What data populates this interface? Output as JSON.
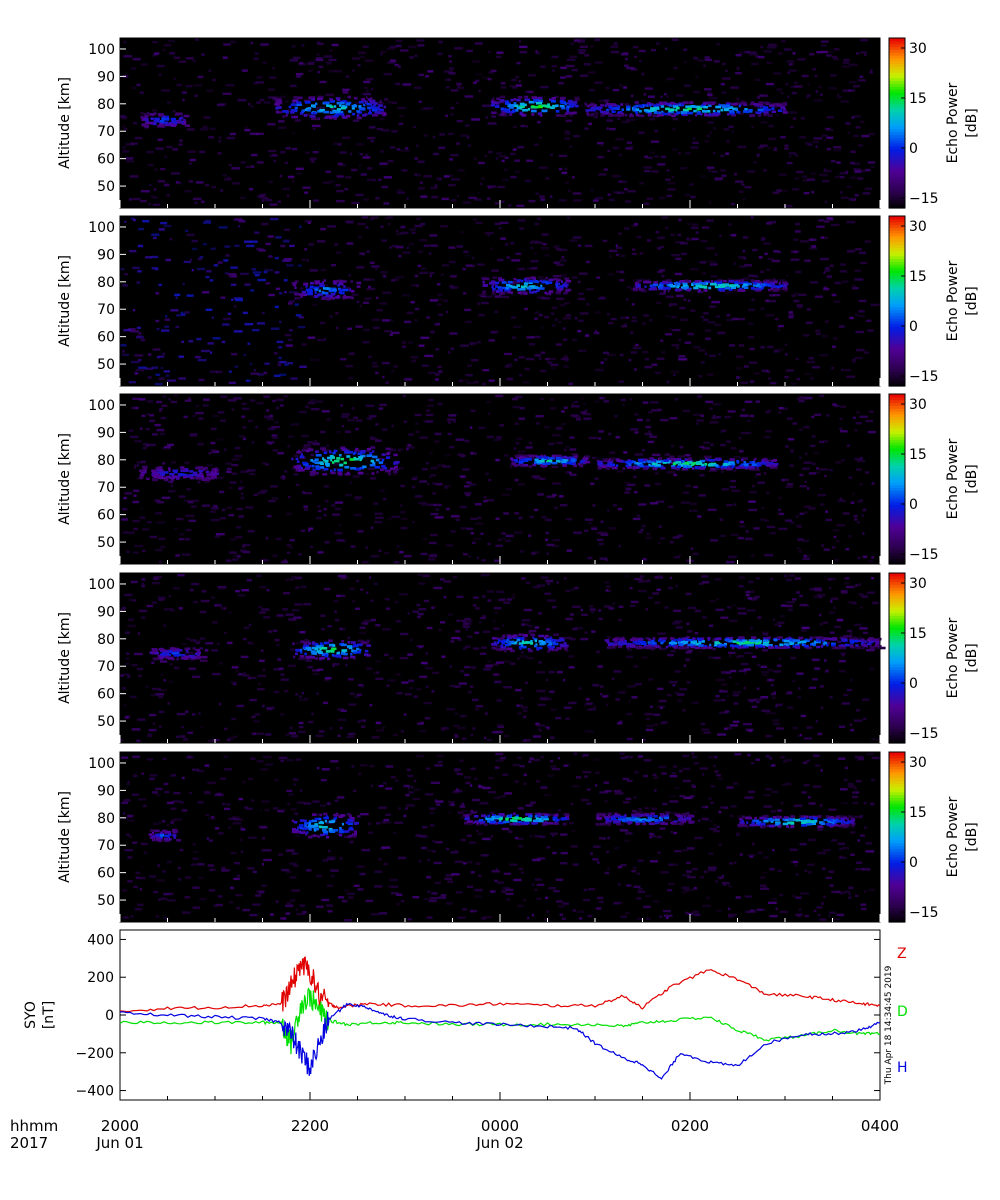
{
  "chart_data": [
    {
      "type": "heatmap",
      "panel": 1,
      "ylabel": "Altitude [km]",
      "yticks": [
        100,
        90,
        80,
        70,
        60,
        50
      ],
      "ylim": [
        42,
        104
      ],
      "colorbar": {
        "label": "Echo Power",
        "unit": "[dB]",
        "ticks": [
          30,
          15,
          0,
          -15
        ],
        "range": [
          -18,
          33
        ]
      },
      "echo_layers": [
        {
          "x": [
            20.2,
            20.7
          ],
          "alt": [
            72,
            77
          ],
          "peak_db": 5
        },
        {
          "x": [
            21.6,
            22.8
          ],
          "alt": [
            75,
            83
          ],
          "peak_db": 15
        },
        {
          "x": [
            23.9,
            24.8
          ],
          "alt": [
            76,
            83
          ],
          "peak_db": 20
        },
        {
          "x": [
            24.9,
            27.0
          ],
          "alt": [
            76,
            81
          ],
          "peak_db": 18
        }
      ]
    },
    {
      "type": "heatmap",
      "panel": 2,
      "ylabel": "Altitude [km]",
      "yticks": [
        100,
        90,
        80,
        70,
        60,
        50
      ],
      "ylim": [
        42,
        104
      ],
      "colorbar": {
        "label": "Echo Power",
        "unit": "[dB]",
        "ticks": [
          30,
          15,
          0,
          -15
        ],
        "range": [
          -18,
          33
        ]
      },
      "echo_layers": [
        {
          "x": [
            21.8,
            22.5
          ],
          "alt": [
            74,
            81
          ],
          "peak_db": 8
        },
        {
          "x": [
            23.8,
            24.7
          ],
          "alt": [
            76,
            82
          ],
          "peak_db": 15
        },
        {
          "x": [
            25.4,
            27.0
          ],
          "alt": [
            77,
            81
          ],
          "peak_db": 18
        }
      ]
    },
    {
      "type": "heatmap",
      "panel": 3,
      "ylabel": "Altitude [km]",
      "yticks": [
        100,
        90,
        80,
        70,
        60,
        50
      ],
      "ylim": [
        42,
        104
      ],
      "colorbar": {
        "label": "Echo Power",
        "unit": "[dB]",
        "ticks": [
          30,
          15,
          0,
          -15
        ],
        "range": [
          -18,
          33
        ]
      },
      "echo_layers": [
        {
          "x": [
            20.2,
            21.0
          ],
          "alt": [
            73,
            78
          ],
          "peak_db": 2
        },
        {
          "x": [
            21.8,
            22.9
          ],
          "alt": [
            75,
            85
          ],
          "peak_db": 20
        },
        {
          "x": [
            24.1,
            24.9
          ],
          "alt": [
            78,
            82
          ],
          "peak_db": 15
        },
        {
          "x": [
            25.0,
            26.9
          ],
          "alt": [
            77,
            81
          ],
          "peak_db": 18
        }
      ]
    },
    {
      "type": "heatmap",
      "panel": 4,
      "ylabel": "Altitude [km]",
      "yticks": [
        100,
        90,
        80,
        70,
        60,
        50
      ],
      "ylim": [
        42,
        104
      ],
      "colorbar": {
        "label": "Echo Power",
        "unit": "[dB]",
        "ticks": [
          30,
          15,
          0,
          -15
        ],
        "range": [
          -18,
          33
        ]
      },
      "echo_layers": [
        {
          "x": [
            20.3,
            20.9
          ],
          "alt": [
            73,
            77
          ],
          "peak_db": 5
        },
        {
          "x": [
            21.8,
            22.6
          ],
          "alt": [
            73,
            80
          ],
          "peak_db": 20
        },
        {
          "x": [
            23.9,
            24.7
          ],
          "alt": [
            76,
            82
          ],
          "peak_db": 15
        },
        {
          "x": [
            25.1,
            28.0
          ],
          "alt": [
            77,
            81
          ],
          "peak_db": 17
        }
      ]
    },
    {
      "type": "heatmap",
      "panel": 5,
      "ylabel": "Altitude [km]",
      "yticks": [
        100,
        90,
        80,
        70,
        60,
        50
      ],
      "ylim": [
        42,
        104
      ],
      "colorbar": {
        "label": "Echo Power",
        "unit": "[dB]",
        "ticks": [
          30,
          15,
          0,
          -15
        ],
        "range": [
          -18,
          33
        ]
      },
      "echo_layers": [
        {
          "x": [
            20.3,
            20.6
          ],
          "alt": [
            72,
            76
          ],
          "peak_db": 5
        },
        {
          "x": [
            21.8,
            22.5
          ],
          "alt": [
            73,
            82
          ],
          "peak_db": 15
        },
        {
          "x": [
            23.6,
            24.7
          ],
          "alt": [
            78,
            82
          ],
          "peak_db": 20
        },
        {
          "x": [
            25.0,
            26.0
          ],
          "alt": [
            78,
            82
          ],
          "peak_db": 10
        },
        {
          "x": [
            26.5,
            27.7
          ],
          "alt": [
            77,
            81
          ],
          "peak_db": 18
        }
      ]
    },
    {
      "type": "line",
      "panel": 6,
      "ylabel_lines": [
        "SYO",
        "[nT]"
      ],
      "yticks": [
        400,
        200,
        0,
        -200,
        -400
      ],
      "ylim": [
        -450,
        450
      ],
      "timestamp": "Thu Apr 18 14:34:45 2019",
      "series": [
        {
          "name": "Z",
          "color": "#e00000",
          "x": [
            20.0,
            20.5,
            21.0,
            21.5,
            21.7,
            21.8,
            21.9,
            22.0,
            22.1,
            22.2,
            22.3,
            22.6,
            23.0,
            23.5,
            24.0,
            24.5,
            25.0,
            25.3,
            25.5,
            25.8,
            26.2,
            26.5,
            26.8,
            27.2,
            27.5,
            27.8,
            28.0
          ],
          "y": [
            20,
            35,
            40,
            50,
            60,
            150,
            270,
            230,
            100,
            60,
            40,
            60,
            50,
            50,
            60,
            50,
            50,
            100,
            40,
            150,
            240,
            190,
            110,
            100,
            80,
            60,
            50
          ]
        },
        {
          "name": "D",
          "color": "#00e000",
          "x": [
            20.0,
            20.5,
            21.0,
            21.5,
            21.7,
            21.8,
            21.9,
            22.0,
            22.1,
            22.2,
            22.4,
            22.7,
            23.0,
            23.5,
            24.0,
            24.5,
            25.0,
            25.3,
            25.5,
            25.8,
            26.2,
            26.5,
            26.8,
            27.2,
            27.5,
            27.8,
            28.0
          ],
          "y": [
            -40,
            -40,
            -40,
            -40,
            -40,
            -150,
            50,
            100,
            20,
            -30,
            -50,
            -40,
            -40,
            -50,
            -50,
            -50,
            -50,
            -60,
            -40,
            -30,
            -10,
            -80,
            -130,
            -110,
            -80,
            -100,
            -100
          ]
        },
        {
          "name": "H",
          "color": "#0000e0",
          "x": [
            20.0,
            20.5,
            21.0,
            21.5,
            21.7,
            21.8,
            21.9,
            22.0,
            22.1,
            22.2,
            22.4,
            22.6,
            22.8,
            23.0,
            23.5,
            24.0,
            24.5,
            24.8,
            25.0,
            25.3,
            25.5,
            25.7,
            25.9,
            26.2,
            26.5,
            26.8,
            27.2,
            27.5,
            27.8,
            28.0
          ],
          "y": [
            10,
            0,
            -10,
            -20,
            -40,
            -100,
            -200,
            -280,
            -150,
            -20,
            60,
            40,
            0,
            -20,
            -40,
            -50,
            -60,
            -70,
            -150,
            -230,
            -260,
            -340,
            -200,
            -250,
            -270,
            -150,
            -100,
            -100,
            -80,
            -40
          ]
        }
      ]
    }
  ],
  "xaxis": {
    "time_label": "hhmm",
    "year_label": "2017",
    "ticks": [
      {
        "x": 20.0,
        "label": "2000",
        "date": "Jun 01"
      },
      {
        "x": 22.0,
        "label": "2200",
        "date": ""
      },
      {
        "x": 24.0,
        "label": "0000",
        "date": "Jun 02"
      },
      {
        "x": 26.0,
        "label": "0200",
        "date": ""
      },
      {
        "x": 28.0,
        "label": "0400",
        "date": ""
      }
    ]
  }
}
